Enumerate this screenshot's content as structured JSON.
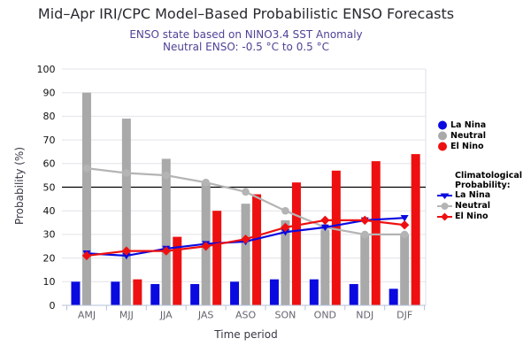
{
  "header": {
    "title": "Mid–Apr IRI/CPC Model–Based Probabilistic ENSO Forecasts",
    "subtitle_line1": "ENSO state based on NINO3.4 SST Anomaly",
    "subtitle_line2": "Neutral ENSO: -0.5 °C to 0.5 °C"
  },
  "legend": {
    "climatological_header_line1": "Climatological",
    "climatological_header_line2": "Probability:"
  },
  "chart_data": {
    "type": "bar",
    "title": "Mid–Apr IRI/CPC Model–Based Probabilistic ENSO Forecasts",
    "xlabel": "Time period",
    "ylabel": "Probability (%)",
    "ylim": [
      0,
      100
    ],
    "yticks": [
      0,
      10,
      20,
      30,
      40,
      50,
      60,
      70,
      80,
      90,
      100
    ],
    "grid": true,
    "legend_position": "right",
    "reference_line": {
      "value": 50,
      "color": "#000000"
    },
    "categories": [
      "AMJ",
      "MJJ",
      "JJA",
      "JAS",
      "ASO",
      "SON",
      "OND",
      "NDJ",
      "DJF"
    ],
    "series": [
      {
        "name": "La Nina",
        "role": "bar",
        "color": "#0a0ae0",
        "values": [
          10,
          10,
          9,
          9,
          10,
          11,
          11,
          9,
          7
        ]
      },
      {
        "name": "Neutral",
        "role": "bar",
        "color": "#a9a9a9",
        "values": [
          90,
          79,
          62,
          52,
          43,
          36,
          32,
          30,
          30
        ]
      },
      {
        "name": "El Nino",
        "role": "bar",
        "color": "#ee1010",
        "values": [
          0,
          11,
          29,
          40,
          47,
          52,
          57,
          61,
          64
        ]
      }
    ],
    "climatology": {
      "series": [
        {
          "name": "La Nina",
          "marker": "triangle-down",
          "color": "#0a0ae0",
          "values": [
            22,
            21,
            24,
            26,
            27,
            31,
            33,
            36,
            37
          ]
        },
        {
          "name": "Neutral",
          "marker": "circle",
          "color": "#b4b4b4",
          "values": [
            58,
            56,
            55,
            52,
            48,
            40,
            33,
            30,
            30
          ]
        },
        {
          "name": "El Nino",
          "marker": "diamond",
          "color": "#ee1010",
          "values": [
            21,
            23,
            23,
            25,
            28,
            33,
            36,
            36,
            34
          ]
        }
      ]
    },
    "colors": {
      "grid": "#e3e3e9",
      "axis": "#b6c0da",
      "plot_border": "#dcdfeb",
      "y_tick_text": "#111111",
      "x_tick_text": "#64646e"
    }
  }
}
